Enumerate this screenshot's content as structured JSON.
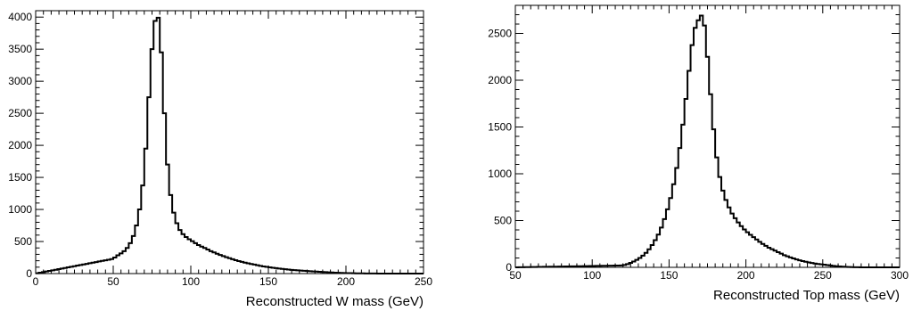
{
  "chart_data": [
    {
      "type": "histogram",
      "xlabel": "Reconstructed W mass (GeV)",
      "ylabel": "",
      "xlim": [
        0,
        250
      ],
      "ylim": [
        0,
        4100
      ],
      "xticks": [
        0,
        50,
        100,
        150,
        200,
        250
      ],
      "yticks": [
        0,
        500,
        1000,
        1500,
        2000,
        2500,
        3000,
        3500,
        4000
      ],
      "grid": false,
      "bin_width": 2,
      "x": [
        0,
        50,
        52,
        54,
        56,
        58,
        60,
        62,
        64,
        66,
        68,
        70,
        72,
        74,
        76,
        78,
        80,
        82,
        84,
        86,
        88,
        90,
        92,
        94,
        96,
        98,
        100,
        102,
        104,
        106,
        108,
        110,
        112,
        114,
        116,
        118,
        120,
        125,
        130,
        135,
        140,
        145,
        150,
        155,
        160,
        165,
        170,
        175,
        180,
        185,
        190,
        195,
        200,
        205,
        210,
        215,
        220,
        225,
        230,
        235,
        240,
        245,
        250
      ],
      "y": [
        0,
        230,
        270,
        300,
        330,
        370,
        430,
        520,
        650,
        850,
        1150,
        1600,
        2300,
        3200,
        3800,
        4080,
        3900,
        3000,
        2000,
        1400,
        1050,
        850,
        720,
        640,
        590,
        550,
        520,
        490,
        460,
        430,
        410,
        390,
        360,
        340,
        320,
        300,
        280,
        240,
        200,
        170,
        145,
        120,
        100,
        85,
        70,
        58,
        48,
        40,
        32,
        25,
        18,
        12,
        8,
        5,
        3,
        2,
        1,
        0,
        0,
        0,
        0,
        0,
        0
      ]
    },
    {
      "type": "histogram",
      "xlabel": "Reconstructed Top mass (GeV)",
      "ylabel": "",
      "xlim": [
        50,
        300
      ],
      "ylim": [
        0,
        2800
      ],
      "xticks": [
        50,
        100,
        150,
        200,
        250,
        300
      ],
      "yticks": [
        0,
        500,
        1000,
        1500,
        2000,
        2500
      ],
      "grid": false,
      "bin_width": 2,
      "x": [
        50,
        120,
        124,
        128,
        132,
        136,
        140,
        144,
        148,
        152,
        156,
        160,
        162,
        164,
        166,
        168,
        170,
        172,
        174,
        176,
        178,
        180,
        182,
        184,
        186,
        188,
        190,
        194,
        198,
        202,
        206,
        210,
        215,
        220,
        225,
        230,
        235,
        240,
        245,
        250,
        255,
        260,
        265,
        270,
        275,
        280,
        300
      ],
      "y": [
        0,
        20,
        40,
        70,
        110,
        170,
        260,
        380,
        560,
        800,
        1150,
        1650,
        1950,
        2250,
        2500,
        2620,
        2660,
        2720,
        2450,
        2050,
        1650,
        1300,
        1050,
        880,
        760,
        680,
        600,
        500,
        420,
        360,
        310,
        260,
        210,
        170,
        130,
        100,
        75,
        55,
        40,
        30,
        20,
        10,
        5,
        2,
        0,
        0,
        0
      ]
    }
  ]
}
